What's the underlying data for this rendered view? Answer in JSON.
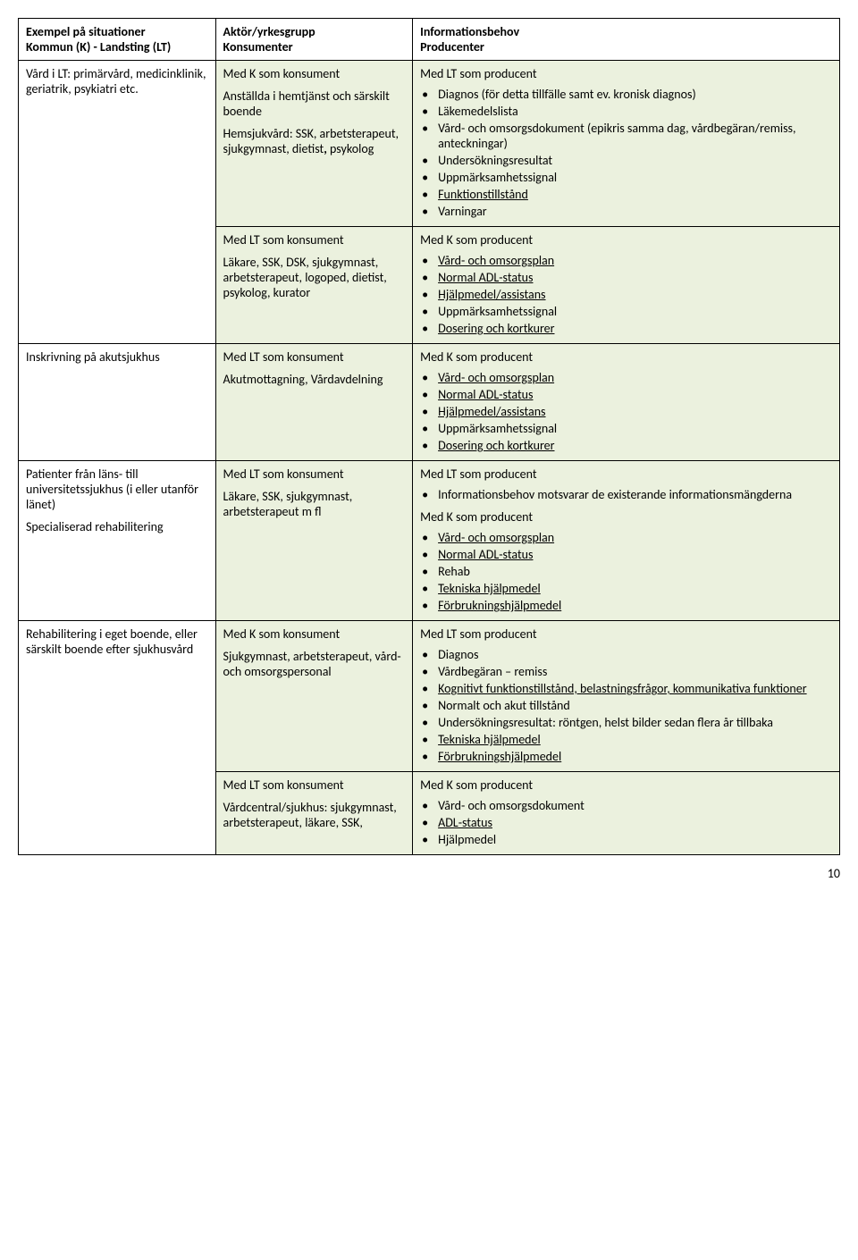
{
  "header": {
    "col1_line1": "Exempel på situationer",
    "col1_line2": "Kommun (K) - Landsting (LT)",
    "col2_line1": "Aktör/yrkesgrupp",
    "col2_line2": "Konsumenter",
    "col3_line1": "Informationsbehov",
    "col3_line2": "Producenter"
  },
  "row1": {
    "situation": "Vård i LT: primärvård, medicinklinik, geriatrik, psykiatri etc.",
    "actor_label": "Med K som konsument",
    "actor_text1": "Anställda i hemtjänst och särskilt boende",
    "actor_text2": "Hemsjukvård: SSK, arbetsterapeut, sjukgymnast, dietist",
    "actor_text2_bold": ",",
    "actor_text3": " psykolog",
    "info_label": "Med LT som producent",
    "bullets": {
      "b1": "Diagnos (för detta tillfälle samt ev. kronisk diagnos)",
      "b2": "Läkemedelslista",
      "b3": "Vård- och omsorgsdokument (epikris samma dag, vårdbegäran/remiss, anteckningar)",
      "b4": "Undersökningsresultat",
      "b5": "Uppmärksamhetssignal",
      "b6": "Funktionstillstånd",
      "b7": "Varningar"
    }
  },
  "row2": {
    "actor_label": "Med LT som konsument",
    "actor_text": "Läkare, SSK, DSK, sjukgymnast, arbetsterapeut, logoped, dietist, psykolog, kurator",
    "info_label": "Med K som producent",
    "bullets": {
      "b1": "Vård- och omsorgsplan",
      "b2": "Normal ADL-status",
      "b3": "Hjälpmedel/assistans",
      "b4": "Uppmärksamhetssignal",
      "b5": "Dosering och kortkurer"
    }
  },
  "row3": {
    "situation": "Inskrivning på akutsjukhus",
    "actor_label": "Med LT som konsument",
    "actor_text": "Akutmottagning, Vårdavdelning",
    "info_label": "Med K som producent",
    "bullets": {
      "b1": "Vård- och omsorgsplan",
      "b2": "Normal ADL-status",
      "b3": "Hjälpmedel/assistans",
      "b4": "Uppmärksamhetssignal",
      "b5": "Dosering och kortkurer"
    }
  },
  "row4": {
    "situation_l1": "Patienter från läns- till universitetssjukhus (i eller utanför länet)",
    "situation_l2": "Specialiserad rehabilitering",
    "actor_label": "Med LT som konsument",
    "actor_text": "Läkare, SSK, sjukgymnast, arbetsterapeut m fl",
    "info_label1": "Med LT som producent",
    "bullets1": {
      "b1": "Informationsbehov motsvarar de existerande informationsmängderna"
    },
    "info_label2": "Med K som producent",
    "bullets2": {
      "b1": "Vård- och omsorgsplan",
      "b2": "Normal ADL-status",
      "b3": "Rehab",
      "b4": "Tekniska hjälpmedel",
      "b5": "Förbrukningshjälpmedel"
    }
  },
  "row5": {
    "situation": "Rehabilitering i eget boende, eller särskilt boende efter sjukhusvård",
    "actor_label": "Med K som konsument",
    "actor_text": "Sjukgymnast, arbetsterapeut, vård- och omsorgspersonal",
    "info_label": "Med LT som producent",
    "bullets": {
      "b1": "Diagnos",
      "b2": "Vårdbegäran – remiss",
      "b3a": "Kognitivt funktionstillstånd, belastningsfrågor, kommunikativa funktioner",
      "b4": "Normalt och akut tillstånd",
      "b5": "Undersökningsresultat: röntgen, helst bilder sedan flera år tillbaka",
      "b6": "Tekniska hjälpmedel",
      "b7": "Förbrukningshjälpmedel"
    }
  },
  "row6": {
    "actor_label": "Med LT som konsument",
    "actor_text": "Vårdcentral/sjukhus: sjukgymnast, arbetsterapeut, läkare, SSK,",
    "info_label": "Med K som producent",
    "bullets": {
      "b1": "Vård- och omsorgsdokument",
      "b2": "ADL-status",
      "b3": "Hjälpmedel"
    }
  },
  "page_number": "10"
}
